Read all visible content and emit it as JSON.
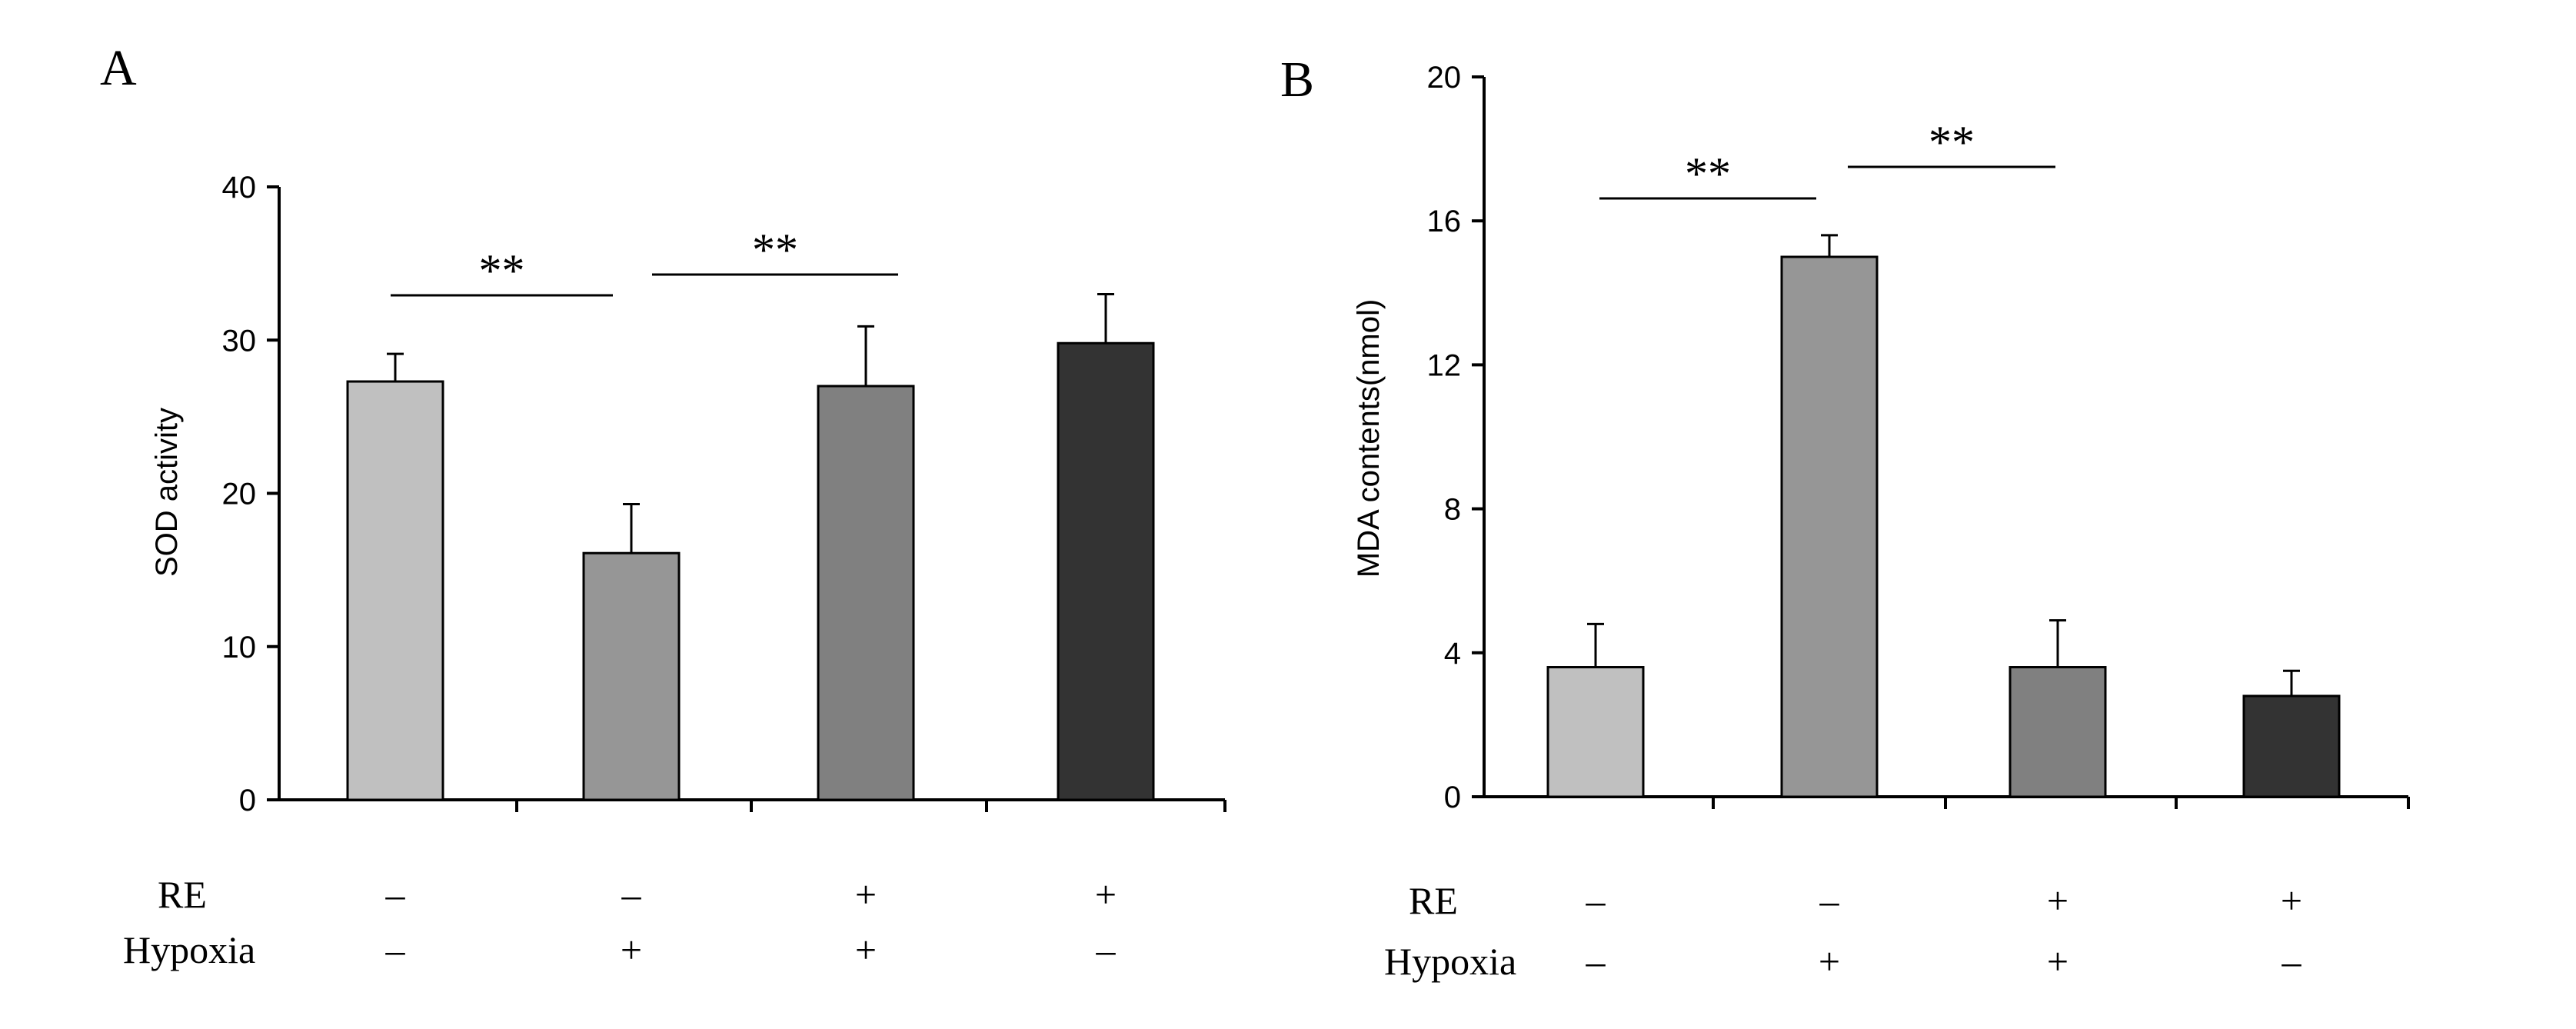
{
  "chart_data": [
    {
      "panel_label": "A",
      "type": "bar",
      "ylabel": "SOD activity",
      "ylim": [
        0,
        40
      ],
      "yticks": [
        "0",
        "10",
        "20",
        "30",
        "40"
      ],
      "values": [
        27.3,
        16.1,
        27.0,
        29.8
      ],
      "errors": [
        1.8,
        3.2,
        3.9,
        3.2
      ],
      "bar_colors": [
        "#c0c0c0",
        "#969696",
        "#808080",
        "#333333"
      ],
      "significance": [
        {
          "from": 0,
          "to": 1,
          "label": "**"
        },
        {
          "from": 1,
          "to": 2,
          "label": "**"
        }
      ],
      "conditions": [
        {
          "name": "RE",
          "values": [
            "–",
            "–",
            "+",
            "+"
          ]
        },
        {
          "name": "Hypoxia",
          "values": [
            "–",
            "+",
            "+",
            "–"
          ]
        }
      ]
    },
    {
      "panel_label": "B",
      "type": "bar",
      "ylabel": "MDA contents(nmol)",
      "ylim": [
        0,
        20
      ],
      "yticks": [
        "0",
        "4",
        "8",
        "12",
        "16",
        "20"
      ],
      "values": [
        3.6,
        15.0,
        3.6,
        2.8
      ],
      "errors": [
        1.2,
        0.6,
        1.3,
        0.7
      ],
      "bar_colors": [
        "#c0c0c0",
        "#969696",
        "#808080",
        "#333333"
      ],
      "significance": [
        {
          "from": 0,
          "to": 1,
          "label": "**"
        },
        {
          "from": 1,
          "to": 2,
          "label": "**"
        }
      ],
      "conditions": [
        {
          "name": "RE",
          "values": [
            "–",
            "–",
            "+",
            "+"
          ]
        },
        {
          "name": "Hypoxia",
          "values": [
            "–",
            "+",
            "+",
            "–"
          ]
        }
      ]
    }
  ]
}
